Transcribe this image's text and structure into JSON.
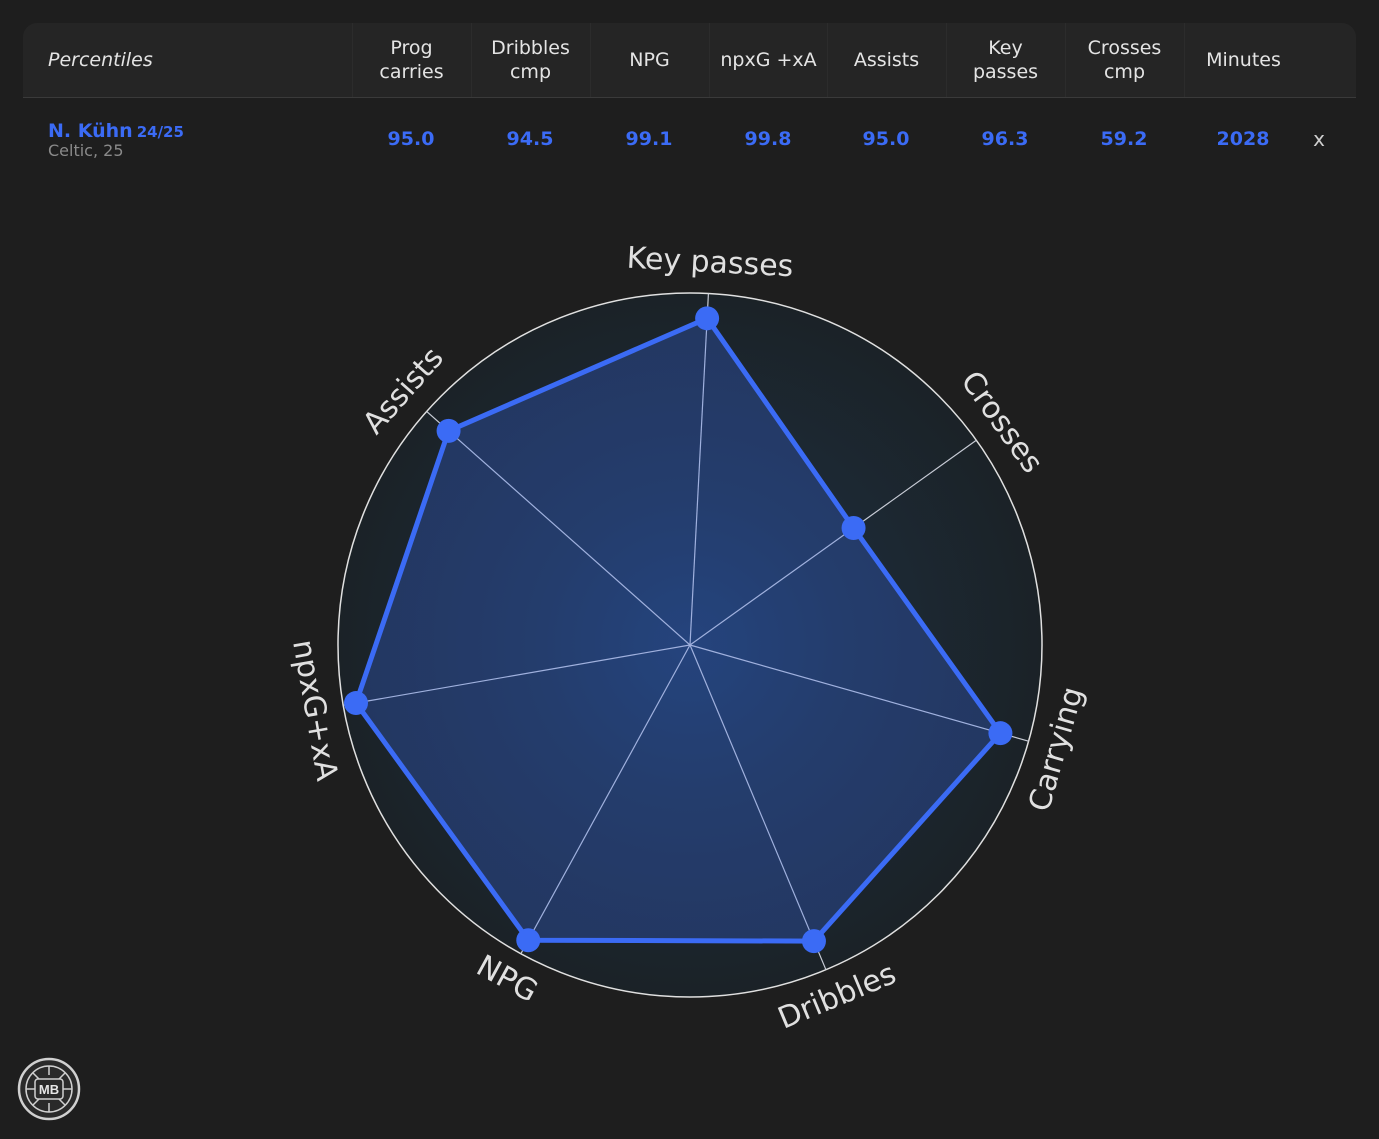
{
  "table": {
    "first_header": "Percentiles",
    "columns": [
      {
        "label": "Prog\ncarries"
      },
      {
        "label": "Dribbles\ncmp"
      },
      {
        "label": "NPG"
      },
      {
        "label": "npxG +xA"
      },
      {
        "label": "Assists"
      },
      {
        "label": "Key\npasses"
      },
      {
        "label": "Crosses\ncmp"
      },
      {
        "label": "Minutes"
      }
    ],
    "row": {
      "player": "N. Kühn",
      "season": "24/25",
      "club": "Celtic, 25",
      "values": [
        "95.0",
        "94.5",
        "99.1",
        "99.8",
        "95.0",
        "96.3",
        "59.2",
        "2028"
      ],
      "remove_label": "x"
    }
  },
  "chart_data": {
    "type": "radar",
    "axes": [
      "Key passes",
      "Crosses",
      "Carrying",
      "Dribbles",
      "NPG",
      "npxG+xA",
      "Assists"
    ],
    "series": [
      {
        "values": [
          96.3,
          59.2,
          95.0,
          94.5,
          99.1,
          99.8,
          95.0
        ]
      }
    ],
    "range": [
      0,
      100
    ],
    "series_color": "#3b6bf5"
  },
  "logo": {
    "text": "MB"
  }
}
